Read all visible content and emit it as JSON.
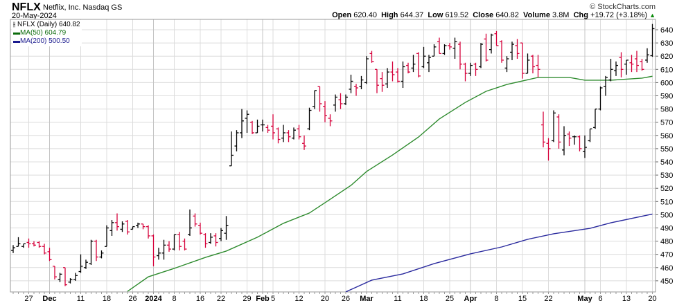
{
  "header": {
    "symbol": "NFLX",
    "name": "Netflix, Inc. Nasdaq GS",
    "date": "20-May-2024",
    "brand": "© StockCharts.com",
    "open_label": "Open",
    "open": "620.40",
    "high_label": "High",
    "high": "644.37",
    "low_label": "Low",
    "low": "619.52",
    "close_label": "Close",
    "close": "640.82",
    "volume_label": "Volume",
    "volume": "3.8M",
    "chg_label": "Chg",
    "chg": "+19.72 (+3.18%)",
    "chg_icon": "up-triangle-icon"
  },
  "legend": {
    "price": "NFLX (Daily) 640.82",
    "ma50": "MA(50) 604.79",
    "ma200": "MA(200) 500.50"
  },
  "colors": {
    "up": "#000000",
    "down": "#d6003a",
    "ma50": "#2e8b2e",
    "ma200": "#2a2a9e",
    "grid": "#dcdcdc"
  },
  "chart_data": {
    "type": "ohlc",
    "ylim": [
      446,
      646
    ],
    "yticks": [
      450,
      460,
      470,
      480,
      490,
      500,
      510,
      520,
      530,
      540,
      550,
      560,
      570,
      580,
      590,
      600,
      610,
      620,
      630,
      640
    ],
    "grid": true,
    "xticks": [
      {
        "date": "2023-11-27",
        "label": "27"
      },
      {
        "date": "2023-12-01",
        "label": "Dec",
        "bold": true
      },
      {
        "date": "2023-12-11",
        "label": "11"
      },
      {
        "date": "2023-12-18",
        "label": "18"
      },
      {
        "date": "2023-12-26",
        "label": "26"
      },
      {
        "date": "2024-01-02",
        "label": "2024",
        "bold": true
      },
      {
        "date": "2024-01-08",
        "label": "8"
      },
      {
        "date": "2024-01-16",
        "label": "16"
      },
      {
        "date": "2024-01-22",
        "label": "22"
      },
      {
        "date": "2024-01-29",
        "label": "29"
      },
      {
        "date": "2024-02-01",
        "label": "Feb",
        "bold": true
      },
      {
        "date": "2024-02-05",
        "label": "5"
      },
      {
        "date": "2024-02-12",
        "label": "12"
      },
      {
        "date": "2024-02-20",
        "label": "20"
      },
      {
        "date": "2024-02-26",
        "label": "26"
      },
      {
        "date": "2024-03-01",
        "label": "Mar",
        "bold": true
      },
      {
        "date": "2024-03-11",
        "label": "11"
      },
      {
        "date": "2024-03-18",
        "label": "18"
      },
      {
        "date": "2024-03-25",
        "label": "25"
      },
      {
        "date": "2024-04-01",
        "label": "Apr",
        "bold": true
      },
      {
        "date": "2024-04-08",
        "label": "8"
      },
      {
        "date": "2024-04-15",
        "label": "15"
      },
      {
        "date": "2024-04-22",
        "label": "22"
      },
      {
        "date": "2024-05-01",
        "label": "May",
        "bold": true
      },
      {
        "date": "2024-05-06",
        "label": "6"
      },
      {
        "date": "2024-05-13",
        "label": "13"
      },
      {
        "date": "2024-05-20",
        "label": "20"
      }
    ],
    "bars_columns": [
      "date",
      "open",
      "high",
      "low",
      "close"
    ],
    "bars": [
      [
        "2023-11-21",
        473,
        477,
        471,
        475
      ],
      [
        "2023-11-22",
        476,
        483,
        476,
        478
      ],
      [
        "2023-11-24",
        476,
        478,
        475,
        478
      ],
      [
        "2023-11-27",
        479,
        482,
        475,
        478
      ],
      [
        "2023-11-28",
        478,
        480,
        476,
        477
      ],
      [
        "2023-11-29",
        479,
        480,
        475,
        476
      ],
      [
        "2023-11-30",
        476,
        478,
        470,
        471
      ],
      [
        "2023-12-01",
        472,
        475,
        465,
        466
      ],
      [
        "2023-12-04",
        461,
        461,
        451,
        453
      ],
      [
        "2023-12-05",
        451,
        456,
        449,
        455
      ],
      [
        "2023-12-06",
        460,
        460,
        446,
        447
      ],
      [
        "2023-12-07",
        449,
        452,
        448,
        451
      ],
      [
        "2023-12-08",
        451,
        456,
        450,
        454
      ],
      [
        "2023-12-11",
        457,
        470,
        456,
        461
      ],
      [
        "2023-12-12",
        460,
        466,
        459,
        464
      ],
      [
        "2023-12-13",
        463,
        481,
        462,
        480
      ],
      [
        "2023-12-14",
        480,
        481,
        465,
        468
      ],
      [
        "2023-12-15",
        468,
        473,
        467,
        471
      ],
      [
        "2023-12-18",
        476,
        492,
        476,
        490
      ],
      [
        "2023-12-19",
        488,
        496,
        484,
        494
      ],
      [
        "2023-12-20",
        494,
        501,
        488,
        491
      ],
      [
        "2023-12-21",
        489,
        495,
        487,
        493
      ],
      [
        "2023-12-22",
        495,
        496,
        485,
        487
      ],
      [
        "2023-12-26",
        489,
        491,
        489,
        491
      ],
      [
        "2023-12-27",
        492,
        494,
        490,
        493
      ],
      [
        "2023-12-28",
        493,
        493,
        489,
        491
      ],
      [
        "2023-12-29",
        491,
        492,
        482,
        484
      ],
      [
        "2024-01-02",
        484,
        485,
        461,
        468
      ],
      [
        "2024-01-03",
        469,
        475,
        466,
        471
      ],
      [
        "2024-01-04",
        471,
        481,
        466,
        477
      ],
      [
        "2024-01-05",
        477,
        480,
        472,
        474
      ],
      [
        "2024-01-08",
        474,
        485,
        473,
        485
      ],
      [
        "2024-01-09",
        485,
        487,
        473,
        476
      ],
      [
        "2024-01-10",
        480,
        482,
        473,
        474
      ],
      [
        "2024-01-11",
        485,
        504,
        484,
        490
      ],
      [
        "2024-01-12",
        499,
        501,
        491,
        493
      ],
      [
        "2024-01-16",
        492,
        494,
        485,
        486
      ],
      [
        "2024-01-17",
        485,
        486,
        475,
        478
      ],
      [
        "2024-01-18",
        479,
        486,
        478,
        483
      ],
      [
        "2024-01-19",
        484,
        486,
        476,
        479
      ],
      [
        "2024-01-22",
        482,
        490,
        480,
        488
      ],
      [
        "2024-01-23",
        486,
        499,
        481,
        492
      ],
      [
        "2024-01-24",
        537,
        563,
        537,
        545
      ],
      [
        "2024-01-25",
        552,
        564,
        548,
        562
      ],
      [
        "2024-01-26",
        562,
        580,
        558,
        571
      ],
      [
        "2024-01-29",
        573,
        579,
        562,
        576
      ],
      [
        "2024-01-30",
        570,
        571,
        561,
        562
      ],
      [
        "2024-01-31",
        562,
        572,
        562,
        567
      ],
      [
        "2024-02-01",
        568,
        572,
        563,
        568
      ],
      [
        "2024-02-02",
        566,
        568,
        562,
        564
      ],
      [
        "2024-02-05",
        567,
        576,
        557,
        562
      ],
      [
        "2024-02-06",
        565,
        566,
        554,
        557
      ],
      [
        "2024-02-07",
        558,
        568,
        555,
        562
      ],
      [
        "2024-02-08",
        562,
        564,
        555,
        559
      ],
      [
        "2024-02-09",
        558,
        566,
        557,
        564
      ],
      [
        "2024-02-12",
        565,
        568,
        557,
        559
      ],
      [
        "2024-02-13",
        554,
        560,
        549,
        552
      ],
      [
        "2024-02-14",
        565,
        581,
        564,
        579
      ],
      [
        "2024-02-15",
        582,
        594,
        580,
        594
      ],
      [
        "2024-02-16",
        597,
        597,
        578,
        584
      ],
      [
        "2024-02-20",
        582,
        586,
        570,
        575
      ],
      [
        "2024-02-21",
        573,
        576,
        567,
        571
      ],
      [
        "2024-02-22",
        583,
        591,
        578,
        589
      ],
      [
        "2024-02-23",
        587,
        592,
        580,
        584
      ],
      [
        "2024-02-26",
        584,
        591,
        583,
        589
      ],
      [
        "2024-02-27",
        595,
        606,
        592,
        601
      ],
      [
        "2024-02-28",
        597,
        599,
        590,
        596
      ],
      [
        "2024-02-29",
        597,
        605,
        595,
        602
      ],
      [
        "2024-03-01",
        600,
        620,
        599,
        618
      ],
      [
        "2024-03-04",
        622,
        624,
        615,
        616
      ],
      [
        "2024-03-05",
        610,
        610,
        592,
        598
      ],
      [
        "2024-03-06",
        603,
        608,
        593,
        598
      ],
      [
        "2024-03-07",
        599,
        611,
        596,
        608
      ],
      [
        "2024-03-08",
        608,
        616,
        601,
        606
      ],
      [
        "2024-03-11",
        608,
        611,
        600,
        601
      ],
      [
        "2024-03-12",
        601,
        616,
        596,
        612
      ],
      [
        "2024-03-13",
        613,
        615,
        607,
        608
      ],
      [
        "2024-03-14",
        611,
        621,
        608,
        614
      ],
      [
        "2024-03-15",
        622,
        623,
        604,
        605
      ],
      [
        "2024-03-18",
        612,
        627,
        611,
        620
      ],
      [
        "2024-03-19",
        615,
        621,
        608,
        619
      ],
      [
        "2024-03-20",
        620,
        629,
        620,
        627
      ],
      [
        "2024-03-21",
        631,
        634,
        622,
        622
      ],
      [
        "2024-03-22",
        622,
        629,
        621,
        628
      ],
      [
        "2024-03-25",
        628,
        630,
        625,
        627
      ],
      [
        "2024-03-26",
        626,
        634,
        618,
        631
      ],
      [
        "2024-03-27",
        629,
        631,
        610,
        614
      ],
      [
        "2024-03-28",
        614,
        615,
        601,
        607
      ],
      [
        "2024-04-01",
        607,
        615,
        605,
        613
      ],
      [
        "2024-04-02",
        614,
        615,
        605,
        610
      ],
      [
        "2024-04-03",
        612,
        630,
        611,
        629
      ],
      [
        "2024-04-04",
        633,
        637,
        616,
        617
      ],
      [
        "2024-04-05",
        625,
        637,
        622,
        636
      ],
      [
        "2024-04-08",
        637,
        639,
        628,
        628
      ],
      [
        "2024-04-09",
        631,
        632,
        615,
        617
      ],
      [
        "2024-04-10",
        611,
        620,
        608,
        618
      ],
      [
        "2024-04-11",
        623,
        631,
        617,
        629
      ],
      [
        "2024-04-12",
        628,
        633,
        618,
        622
      ],
      [
        "2024-04-15",
        630,
        630,
        603,
        607
      ],
      [
        "2024-04-16",
        607,
        622,
        607,
        617
      ],
      [
        "2024-04-17",
        620,
        621,
        607,
        612
      ],
      [
        "2024-04-18",
        613,
        621,
        604,
        610
      ],
      [
        "2024-04-19",
        568,
        578,
        551,
        555
      ],
      [
        "2024-04-22",
        554,
        558,
        541,
        550
      ],
      [
        "2024-04-23",
        556,
        579,
        555,
        577
      ],
      [
        "2024-04-24",
        574,
        576,
        550,
        555
      ],
      [
        "2024-04-25",
        549,
        567,
        545,
        560
      ],
      [
        "2024-04-26",
        561,
        563,
        552,
        558
      ],
      [
        "2024-04-29",
        559,
        560,
        553,
        559
      ],
      [
        "2024-04-30",
        559,
        560,
        548,
        550
      ],
      [
        "2024-05-01",
        548,
        560,
        543,
        551
      ],
      [
        "2024-05-02",
        556,
        565,
        555,
        565
      ],
      [
        "2024-05-03",
        566,
        580,
        565,
        580
      ],
      [
        "2024-05-06",
        580,
        597,
        579,
        596
      ],
      [
        "2024-05-07",
        597,
        605,
        590,
        604
      ],
      [
        "2024-05-08",
        602,
        618,
        601,
        610
      ],
      [
        "2024-05-09",
        609,
        616,
        605,
        613
      ],
      [
        "2024-05-10",
        619,
        623,
        604,
        610
      ],
      [
        "2024-05-13",
        614,
        617,
        606,
        617
      ],
      [
        "2024-05-14",
        615,
        621,
        608,
        614
      ],
      [
        "2024-05-15",
        618,
        624,
        608,
        613
      ],
      [
        "2024-05-16",
        616,
        618,
        609,
        610
      ],
      [
        "2024-05-17",
        617,
        626,
        615,
        621
      ],
      [
        "2024-05-20",
        620.4,
        644.37,
        619.52,
        640.82
      ]
    ],
    "series": [
      {
        "name": "MA(50)",
        "points": [
          [
            "2023-12-22",
            442
          ],
          [
            "2023-12-29",
            453
          ],
          [
            "2024-01-08",
            459.4
          ],
          [
            "2024-01-17",
            467.7
          ],
          [
            "2024-01-23",
            472.5
          ],
          [
            "2024-01-31",
            483
          ],
          [
            "2024-02-07",
            493.5
          ],
          [
            "2024-02-14",
            501.3
          ],
          [
            "2024-02-21",
            511.7
          ],
          [
            "2024-02-27",
            522.2
          ],
          [
            "2024-03-01",
            532.7
          ],
          [
            "2024-03-08",
            545.2
          ],
          [
            "2024-03-15",
            558.8
          ],
          [
            "2024-03-21",
            572.5
          ],
          [
            "2024-03-28",
            585
          ],
          [
            "2024-04-04",
            593.4
          ],
          [
            "2024-04-10",
            598.6
          ],
          [
            "2024-04-18",
            603.9
          ],
          [
            "2024-04-26",
            603.9
          ],
          [
            "2024-05-01",
            601.8
          ],
          [
            "2024-05-08",
            601.8
          ],
          [
            "2024-05-16",
            603.4
          ],
          [
            "2024-05-20",
            604.79
          ]
        ]
      },
      {
        "name": "MA(200)",
        "points": [
          [
            "2024-02-26",
            441.6
          ],
          [
            "2024-03-04",
            450.5
          ],
          [
            "2024-03-12",
            455.2
          ],
          [
            "2024-03-20",
            463
          ],
          [
            "2024-04-01",
            470.4
          ],
          [
            "2024-04-09",
            475.6
          ],
          [
            "2024-04-16",
            481.4
          ],
          [
            "2024-04-23",
            485.6
          ],
          [
            "2024-05-02",
            489.7
          ],
          [
            "2024-05-08",
            493.9
          ],
          [
            "2024-05-20",
            500.5
          ]
        ]
      }
    ]
  }
}
